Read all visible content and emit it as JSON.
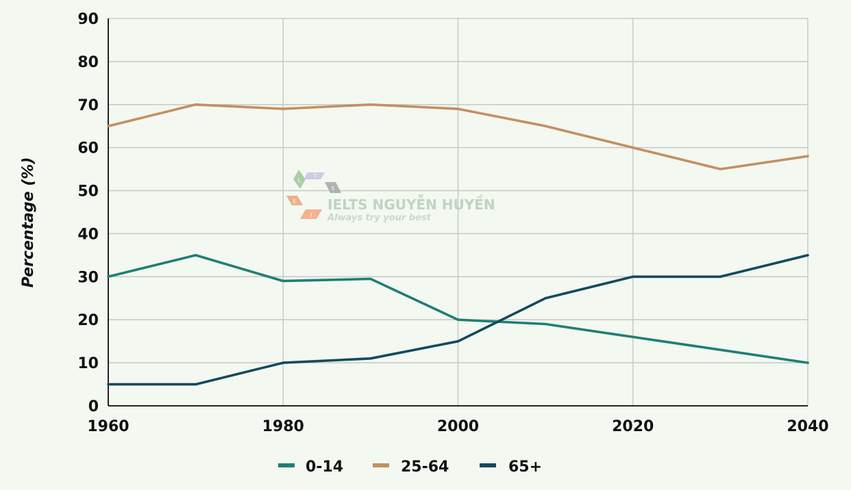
{
  "chart_data": {
    "type": "line",
    "title": "",
    "xlabel": "",
    "ylabel": "Percentage (%)",
    "x": [
      1960,
      1970,
      1980,
      1990,
      2000,
      2010,
      2020,
      2030,
      2040
    ],
    "x_ticks": [
      "1960",
      "1980",
      "2000",
      "2020",
      "2040"
    ],
    "y_ticks": [
      "0",
      "10",
      "20",
      "30",
      "40",
      "50",
      "60",
      "70",
      "80",
      "90"
    ],
    "xlim": [
      1960,
      2040
    ],
    "ylim": [
      0,
      90
    ],
    "grid": true,
    "legend_position": "bottom",
    "series": [
      {
        "name": "0-14",
        "color": "#1f7f73",
        "values": [
          30,
          35,
          29,
          29.5,
          20,
          19,
          16,
          13,
          10
        ]
      },
      {
        "name": "25-64",
        "color": "#c48f62",
        "values": [
          65,
          70,
          69,
          70,
          69,
          65,
          60,
          55,
          58
        ]
      },
      {
        "name": "65+",
        "color": "#124a5e",
        "values": [
          5,
          5,
          10,
          11,
          15,
          25,
          30,
          30,
          35
        ]
      }
    ]
  },
  "watermark": {
    "title": "IELTS NGUYỄN HUYỀN",
    "subtitle": "Always try your best",
    "letters": [
      "L",
      "T",
      "S",
      "E",
      "I"
    ]
  }
}
